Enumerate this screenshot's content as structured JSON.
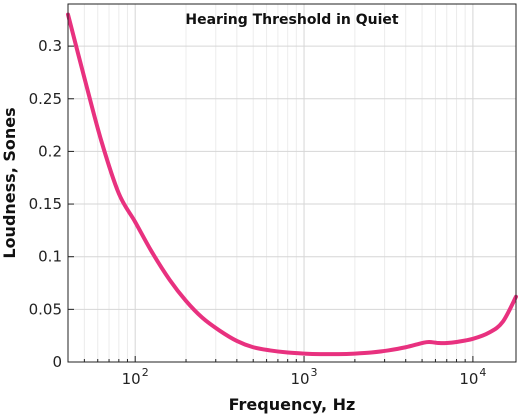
{
  "chart_data": {
    "type": "line",
    "title": "Hearing Threshold in Quiet",
    "xlabel": "Frequency, Hz",
    "ylabel": "Loudness, Sones",
    "xscale": "log",
    "xlim": [
      40,
      18000
    ],
    "ylim": [
      0,
      0.34
    ],
    "grid": true,
    "xticks": [
      {
        "value": 100,
        "base": "10",
        "exp": "2"
      },
      {
        "value": 1000,
        "base": "10",
        "exp": "3"
      },
      {
        "value": 10000,
        "base": "10",
        "exp": "4"
      }
    ],
    "yticks": [
      {
        "value": 0,
        "label": "0"
      },
      {
        "value": 0.05,
        "label": "0.05"
      },
      {
        "value": 0.1,
        "label": "0.1"
      },
      {
        "value": 0.15,
        "label": "0.15"
      },
      {
        "value": 0.2,
        "label": "0.2"
      },
      {
        "value": 0.25,
        "label": "0.25"
      },
      {
        "value": 0.3,
        "label": "0.3"
      }
    ],
    "series": [
      {
        "color": "#e8317f",
        "x": [
          40,
          50,
          63,
          80,
          100,
          125,
          160,
          200,
          250,
          315,
          400,
          500,
          630,
          800,
          1000,
          1250,
          1600,
          2000,
          2500,
          3150,
          4000,
          5000,
          5500,
          6300,
          7000,
          8000,
          10000,
          12500,
          15000,
          18000
        ],
        "y": [
          0.33,
          0.27,
          0.21,
          0.16,
          0.133,
          0.105,
          0.078,
          0.058,
          0.042,
          0.03,
          0.02,
          0.014,
          0.011,
          0.009,
          0.008,
          0.0075,
          0.0075,
          0.008,
          0.009,
          0.011,
          0.014,
          0.018,
          0.019,
          0.018,
          0.018,
          0.019,
          0.022,
          0.028,
          0.038,
          0.062
        ]
      }
    ]
  }
}
